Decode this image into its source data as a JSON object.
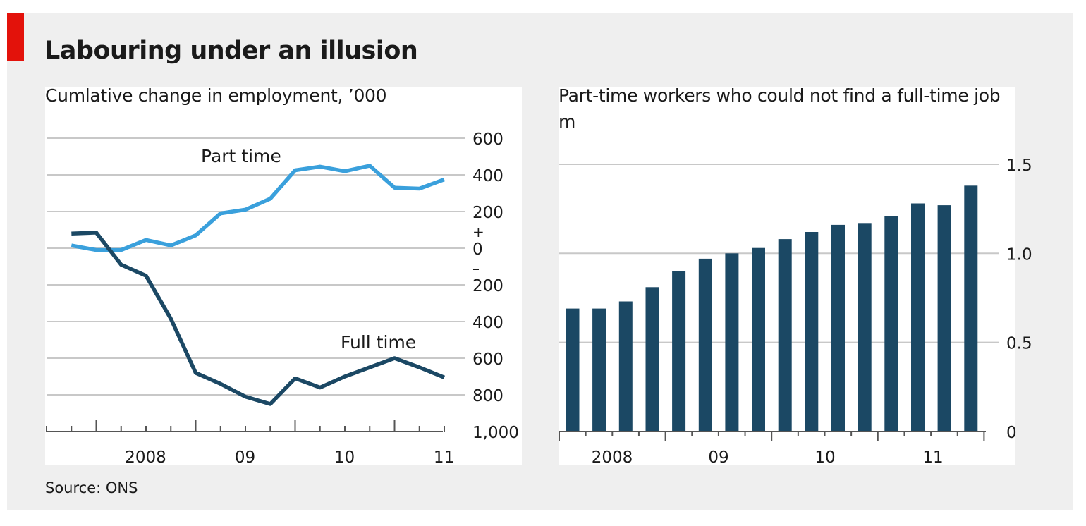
{
  "header": {
    "title": "Labouring under an illusion"
  },
  "footer": {
    "source": "Source: ONS"
  },
  "colors": {
    "accent_red": "#e3120b",
    "part_time": "#3aa0dc",
    "full_time": "#1b4864",
    "bars": "#1b4864",
    "grid": "#c8c8c8"
  },
  "chart_data": [
    {
      "type": "line",
      "title": "Cumlative change in employment, ’000",
      "x": [
        2007.75,
        2008.0,
        2008.25,
        2008.5,
        2008.75,
        2009.0,
        2009.25,
        2009.5,
        2009.75,
        2010.0,
        2010.25,
        2010.5,
        2010.75,
        2011.0,
        2011.25,
        2011.5
      ],
      "series": [
        {
          "name": "Part time",
          "values": [
            15,
            -10,
            -10,
            45,
            15,
            70,
            190,
            210,
            270,
            425,
            445,
            420,
            450,
            330,
            325,
            375
          ]
        },
        {
          "name": "Full time",
          "values": [
            80,
            85,
            -90,
            -150,
            -385,
            -680,
            -740,
            -810,
            -850,
            -710,
            -760,
            -700,
            -650,
            -600,
            -650,
            -705
          ]
        }
      ],
      "yticks": [
        600,
        400,
        200,
        0,
        -200,
        -400,
        -600,
        -800,
        -1000
      ],
      "ytick_labels": [
        "600",
        "400",
        "200",
        "0",
        "200",
        "400",
        "600",
        "800",
        "1,000"
      ],
      "plus_sign": "+",
      "minus_sign": "–",
      "ylim": [
        -1000,
        700
      ],
      "x_tick_labels": [
        {
          "label": "2008",
          "at": 2008.5
        },
        {
          "label": "09",
          "at": 2009.5
        },
        {
          "label": "10",
          "at": 2010.5
        },
        {
          "label": "11",
          "at": 2011.5
        }
      ],
      "xlim": [
        2007.5,
        2011.75
      ],
      "grid": true,
      "y_axis_position": "right"
    },
    {
      "type": "bar",
      "title": "Part-time workers who could not find a full-time job",
      "unit": "m",
      "x": [
        2008.0,
        2008.25,
        2008.5,
        2008.75,
        2009.0,
        2009.25,
        2009.5,
        2009.75,
        2010.0,
        2010.25,
        2010.5,
        2010.75,
        2011.0,
        2011.25,
        2011.5,
        2011.75
      ],
      "values": [
        0.69,
        0.69,
        0.73,
        0.81,
        0.9,
        0.97,
        1.0,
        1.03,
        1.08,
        1.12,
        1.16,
        1.17,
        1.21,
        1.28,
        1.27,
        1.38
      ],
      "yticks": [
        0,
        0.5,
        1.0,
        1.5
      ],
      "ytick_labels": [
        "0",
        "0.5",
        "1.0",
        "1.5"
      ],
      "ylim": [
        0,
        1.6
      ],
      "x_tick_labels": [
        {
          "label": "2008",
          "at": 2008.5
        },
        {
          "label": "09",
          "at": 2009.5
        },
        {
          "label": "10",
          "at": 2010.5
        },
        {
          "label": "11",
          "at": 2011.5
        }
      ],
      "grid": true,
      "y_axis_position": "right"
    }
  ]
}
